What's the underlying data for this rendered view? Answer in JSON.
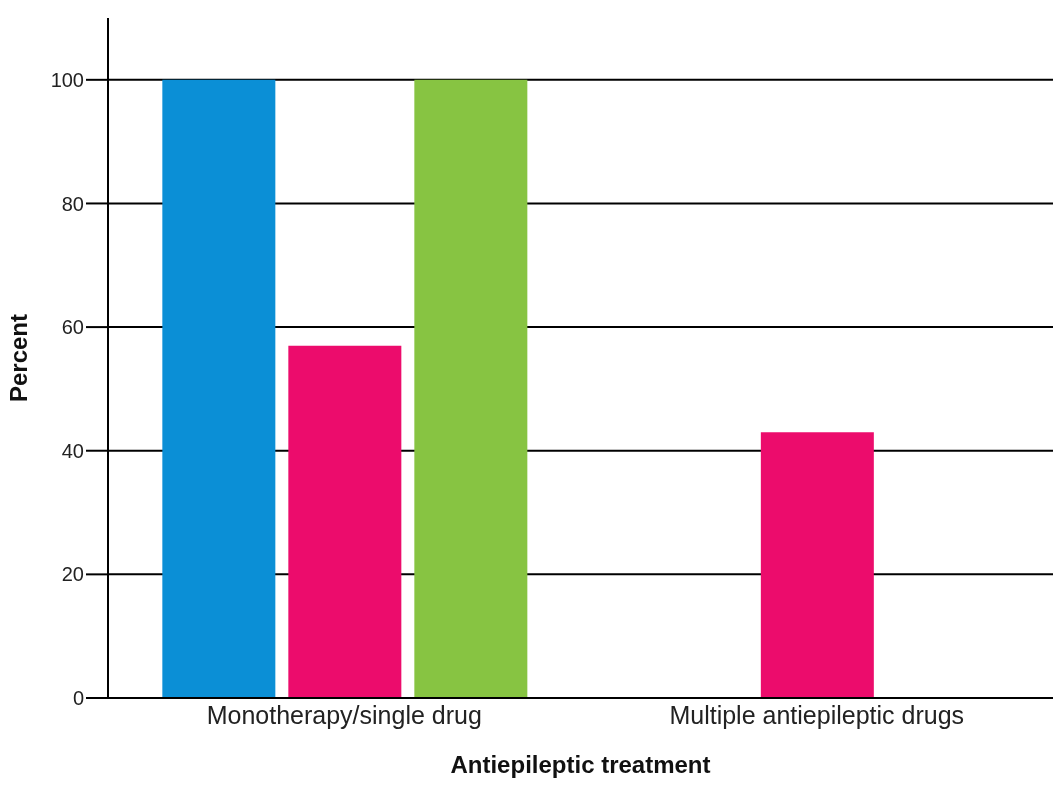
{
  "chart_data": {
    "type": "bar",
    "xlabel": "Antiepileptic treatment",
    "ylabel": "Percent",
    "categories": [
      "Monotherapy/single drug",
      "Multiple antiepileptic drugs"
    ],
    "series": [
      {
        "color": "#0b8fd6",
        "values": [
          100,
          0
        ]
      },
      {
        "color": "#ec0c6c",
        "values": [
          57,
          43
        ]
      },
      {
        "color": "#87c442",
        "values": [
          100,
          0
        ]
      }
    ],
    "ylim": [
      0,
      110
    ],
    "yticks": [
      0,
      20,
      40,
      60,
      80,
      100
    ],
    "grid": "y",
    "legend": false
  }
}
